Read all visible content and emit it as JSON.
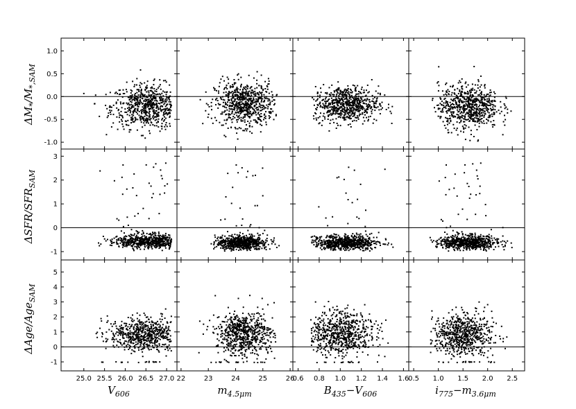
{
  "figure": {
    "rows": [
      {
        "ylabel": "ΔM*/M*,SAM",
        "ylim": [
          -1.15,
          1.28
        ],
        "yticks": [
          1.0,
          0.5,
          0.0,
          -0.5,
          -1.0
        ],
        "ytick_labels": [
          "1.0",
          "0.5",
          "0.0",
          "-0.5",
          "-1.0"
        ],
        "hline": 0
      },
      {
        "ylabel": "ΔSFR/SFRSAM",
        "ylim": [
          -1.35,
          3.3
        ],
        "yticks": [
          3,
          2,
          1,
          0,
          -1
        ],
        "ytick_labels": [
          "3",
          "2",
          "1",
          "0",
          "-1"
        ],
        "hline": 0
      },
      {
        "ylabel": "ΔAge/AgeSAM",
        "ylim": [
          -1.6,
          5.8
        ],
        "yticks": [
          5,
          4,
          3,
          2,
          1,
          0,
          -1
        ],
        "ytick_labels": [
          "5",
          "4",
          "3",
          "2",
          "1",
          "0",
          "-1"
        ],
        "hline": 0
      }
    ],
    "cols": [
      {
        "xlabel": "V606",
        "xlim": [
          24.45,
          27.25
        ],
        "xticks": [
          25.0,
          25.5,
          26.0,
          26.5,
          27.0
        ],
        "xtick_labels": [
          "25.0",
          "25.5",
          "26.0",
          "26.5",
          "27.0"
        ]
      },
      {
        "xlabel": "m4.5μm",
        "xlim": [
          21.85,
          26.1
        ],
        "xticks": [
          22,
          23,
          24,
          25,
          26
        ],
        "xtick_labels": [
          "22",
          "23",
          "24",
          "25",
          "26"
        ]
      },
      {
        "xlabel": "B435−V606",
        "xlim": [
          0.55,
          1.65
        ],
        "xticks": [
          0.6,
          0.8,
          1.0,
          1.2,
          1.4,
          1.6
        ],
        "xtick_labels": [
          "0.6",
          "0.8",
          "1.0",
          "1.2",
          "1.4",
          "1.6"
        ]
      },
      {
        "xlabel": "i775−m3.6μm",
        "xlim": [
          0.4,
          2.75
        ],
        "xticks": [
          0.5,
          1.0,
          1.5,
          2.0,
          2.5
        ],
        "xtick_labels": [
          "0.5",
          "1.0",
          "1.5",
          "2.0",
          "2.5"
        ]
      }
    ]
  },
  "chart_data": {
    "type": "scatter",
    "layout": "3 rows x 4 columns, shared axes",
    "marker_color": "#000000",
    "series": [
      {
        "row": 0,
        "col": 0,
        "x_center": 26.55,
        "y_center": -0.2,
        "x_range": [
          24.6,
          27.1
        ],
        "y_range": [
          -0.98,
          1.05
        ]
      },
      {
        "row": 0,
        "col": 1,
        "x_center": 24.3,
        "y_center": -0.15,
        "x_range": [
          22.5,
          25.5
        ],
        "y_range": [
          -0.98,
          1.05
        ]
      },
      {
        "row": 0,
        "col": 2,
        "x_center": 1.05,
        "y_center": -0.15,
        "x_range": [
          0.7,
          1.55
        ],
        "y_range": [
          -0.98,
          0.65
        ]
      },
      {
        "row": 0,
        "col": 3,
        "x_center": 1.6,
        "y_center": -0.2,
        "x_range": [
          0.8,
          2.5
        ],
        "y_range": [
          -0.98,
          1.05
        ]
      },
      {
        "row": 1,
        "col": 0,
        "x_center": 26.6,
        "y_center": -0.55,
        "x_range": [
          24.6,
          27.1
        ],
        "y_range": [
          -0.95,
          2.75
        ]
      },
      {
        "row": 1,
        "col": 1,
        "x_center": 24.2,
        "y_center": -0.6,
        "x_range": [
          23.0,
          25.6
        ],
        "y_range": [
          -0.95,
          2.75
        ]
      },
      {
        "row": 1,
        "col": 2,
        "x_center": 1.05,
        "y_center": -0.6,
        "x_range": [
          0.7,
          1.55
        ],
        "y_range": [
          -0.95,
          2.75
        ]
      },
      {
        "row": 1,
        "col": 3,
        "x_center": 1.6,
        "y_center": -0.6,
        "x_range": [
          0.8,
          2.5
        ],
        "y_range": [
          -0.95,
          2.75
        ]
      },
      {
        "row": 2,
        "col": 0,
        "x_center": 26.5,
        "y_center": 0.9,
        "x_range": [
          24.6,
          27.1
        ],
        "y_range": [
          -1.0,
          3.7
        ]
      },
      {
        "row": 2,
        "col": 1,
        "x_center": 24.3,
        "y_center": 0.9,
        "x_range": [
          22.5,
          25.5
        ],
        "y_range": [
          -1.0,
          5.0
        ]
      },
      {
        "row": 2,
        "col": 2,
        "x_center": 1.0,
        "y_center": 0.9,
        "x_range": [
          0.7,
          1.55
        ],
        "y_range": [
          -1.0,
          5.0
        ]
      },
      {
        "row": 2,
        "col": 3,
        "x_center": 1.5,
        "y_center": 0.9,
        "x_range": [
          0.8,
          2.5
        ],
        "y_range": [
          -1.0,
          5.0
        ]
      }
    ]
  }
}
